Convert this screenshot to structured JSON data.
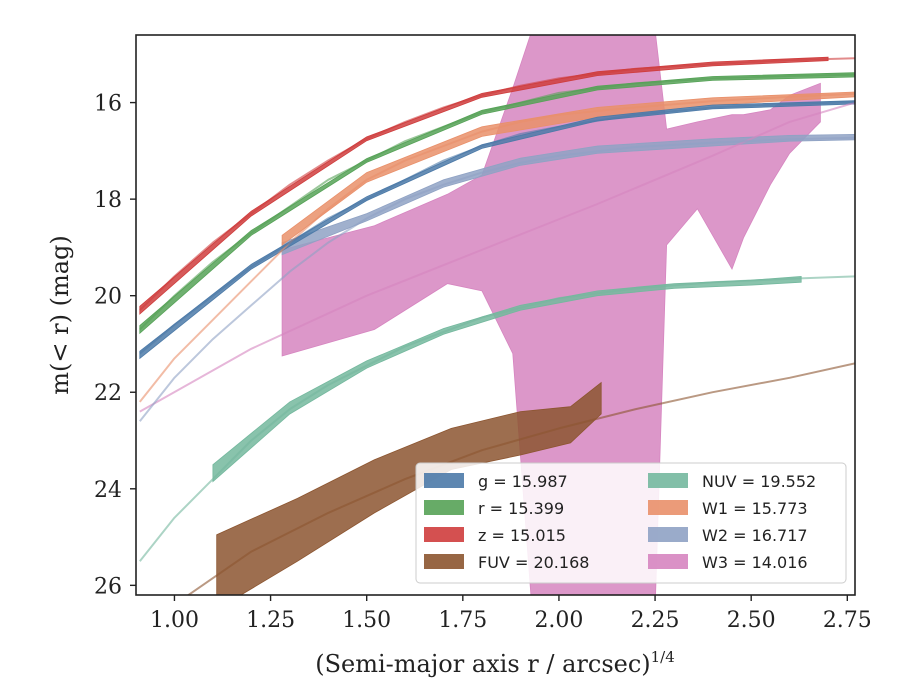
{
  "chart_data": {
    "type": "area",
    "xlabel": "(Semi-major axis r / arcsec)",
    "xlabel_exponent": "1/4",
    "ylabel": "m(< r) (mag)",
    "xlim": [
      0.9,
      2.77
    ],
    "ylim": [
      26.2,
      14.6
    ],
    "y_inverted": true,
    "grid": false,
    "legend_placement": "lower-right",
    "xticks": [
      {
        "value": 1.0,
        "label": "1.00"
      },
      {
        "value": 1.25,
        "label": "1.25"
      },
      {
        "value": 1.5,
        "label": "1.50"
      },
      {
        "value": 1.75,
        "label": "1.75"
      },
      {
        "value": 2.0,
        "label": "2.00"
      },
      {
        "value": 2.25,
        "label": "2.25"
      },
      {
        "value": 2.5,
        "label": "2.50"
      },
      {
        "value": 2.75,
        "label": "2.75"
      }
    ],
    "yticks": [
      {
        "value": 16,
        "label": "16"
      },
      {
        "value": 18,
        "label": "18"
      },
      {
        "value": 20,
        "label": "20"
      },
      {
        "value": 22,
        "label": "22"
      },
      {
        "value": 24,
        "label": "24"
      },
      {
        "value": 26,
        "label": "26"
      }
    ],
    "series": [
      {
        "legend": "g = 15.987",
        "color": "#4c7aa8",
        "model": [
          [
            0.91,
            21.2
          ],
          [
            1.0,
            20.6
          ],
          [
            1.1,
            20.0
          ],
          [
            1.2,
            19.4
          ],
          [
            1.3,
            18.9
          ],
          [
            1.4,
            18.4
          ],
          [
            1.5,
            18.0
          ],
          [
            1.6,
            17.6
          ],
          [
            1.7,
            17.2
          ],
          [
            1.8,
            16.9
          ],
          [
            1.9,
            16.65
          ],
          [
            2.0,
            16.5
          ],
          [
            2.2,
            16.25
          ],
          [
            2.4,
            16.1
          ],
          [
            2.6,
            16.03
          ],
          [
            2.77,
            15.99
          ]
        ],
        "band": [
          [
            0.91,
            21.3,
            21.15
          ],
          [
            1.2,
            19.45,
            19.35
          ],
          [
            1.5,
            18.03,
            17.95
          ],
          [
            1.8,
            16.95,
            16.87
          ],
          [
            2.1,
            16.38,
            16.3
          ],
          [
            2.4,
            16.13,
            16.05
          ],
          [
            2.77,
            16.03,
            15.96
          ]
        ]
      },
      {
        "legend": "r = 15.399",
        "color": "#56a257",
        "model": [
          [
            0.91,
            20.7
          ],
          [
            1.0,
            20.0
          ],
          [
            1.1,
            19.3
          ],
          [
            1.2,
            18.7
          ],
          [
            1.3,
            18.15
          ],
          [
            1.4,
            17.6
          ],
          [
            1.5,
            17.2
          ],
          [
            1.6,
            16.8
          ],
          [
            1.7,
            16.5
          ],
          [
            1.8,
            16.2
          ],
          [
            1.9,
            16.0
          ],
          [
            2.0,
            15.8
          ],
          [
            2.2,
            15.6
          ],
          [
            2.4,
            15.5
          ],
          [
            2.6,
            15.45
          ],
          [
            2.77,
            15.42
          ]
        ],
        "band": [
          [
            0.91,
            20.78,
            20.62
          ],
          [
            1.2,
            18.75,
            18.65
          ],
          [
            1.5,
            17.24,
            17.16
          ],
          [
            1.8,
            16.24,
            16.16
          ],
          [
            2.1,
            15.74,
            15.66
          ],
          [
            2.4,
            15.54,
            15.46
          ],
          [
            2.77,
            15.47,
            15.38
          ]
        ]
      },
      {
        "legend": "z = 15.015",
        "color": "#cf3d3d",
        "model": [
          [
            0.91,
            20.3
          ],
          [
            1.0,
            19.6
          ],
          [
            1.1,
            18.9
          ],
          [
            1.2,
            18.3
          ],
          [
            1.3,
            17.7
          ],
          [
            1.4,
            17.2
          ],
          [
            1.5,
            16.75
          ],
          [
            1.6,
            16.4
          ],
          [
            1.7,
            16.1
          ],
          [
            1.8,
            15.85
          ],
          [
            1.9,
            15.65
          ],
          [
            2.0,
            15.5
          ],
          [
            2.2,
            15.3
          ],
          [
            2.4,
            15.2
          ],
          [
            2.6,
            15.12
          ],
          [
            2.77,
            15.08
          ]
        ],
        "band": [
          [
            0.91,
            20.38,
            20.22
          ],
          [
            1.2,
            18.35,
            18.25
          ],
          [
            1.5,
            16.79,
            16.71
          ],
          [
            1.8,
            15.89,
            15.81
          ],
          [
            2.1,
            15.44,
            15.36
          ],
          [
            2.4,
            15.24,
            15.16
          ],
          [
            2.7,
            15.13,
            15.06
          ]
        ]
      },
      {
        "legend": "FUV = 20.168",
        "color": "#8c5530",
        "model": [
          [
            1.0,
            26.4
          ],
          [
            1.2,
            25.3
          ],
          [
            1.4,
            24.5
          ],
          [
            1.6,
            23.8
          ],
          [
            1.8,
            23.2
          ],
          [
            2.0,
            22.75
          ],
          [
            2.2,
            22.35
          ],
          [
            2.4,
            22.0
          ],
          [
            2.6,
            21.7
          ],
          [
            2.77,
            21.4
          ]
        ],
        "band": [
          [
            1.11,
            26.5,
            24.95
          ],
          [
            1.32,
            25.5,
            24.2
          ],
          [
            1.52,
            24.5,
            23.4
          ],
          [
            1.72,
            23.6,
            22.75
          ],
          [
            1.9,
            23.3,
            22.4
          ],
          [
            2.03,
            23.05,
            22.3
          ],
          [
            2.11,
            22.45,
            21.8
          ]
        ]
      },
      {
        "legend": "NUV = 19.552",
        "color": "#74b89e",
        "model": [
          [
            0.91,
            25.5
          ],
          [
            1.0,
            24.6
          ],
          [
            1.1,
            23.8
          ],
          [
            1.2,
            23.0
          ],
          [
            1.3,
            22.35
          ],
          [
            1.4,
            21.85
          ],
          [
            1.5,
            21.45
          ],
          [
            1.6,
            21.05
          ],
          [
            1.7,
            20.75
          ],
          [
            1.8,
            20.45
          ],
          [
            1.9,
            20.25
          ],
          [
            2.0,
            20.05
          ],
          [
            2.2,
            19.85
          ],
          [
            2.4,
            19.72
          ],
          [
            2.6,
            19.65
          ],
          [
            2.77,
            19.6
          ]
        ],
        "band": [
          [
            1.1,
            23.85,
            23.5
          ],
          [
            1.3,
            22.45,
            22.2
          ],
          [
            1.5,
            21.5,
            21.35
          ],
          [
            1.7,
            20.8,
            20.68
          ],
          [
            1.9,
            20.3,
            20.2
          ],
          [
            2.1,
            20.0,
            19.9
          ],
          [
            2.3,
            19.85,
            19.75
          ],
          [
            2.5,
            19.78,
            19.68
          ],
          [
            2.63,
            19.72,
            19.6
          ]
        ]
      },
      {
        "legend": "W1 = 15.773",
        "color": "#e9906a",
        "model": [
          [
            0.91,
            22.2
          ],
          [
            1.0,
            21.3
          ],
          [
            1.1,
            20.5
          ],
          [
            1.2,
            19.7
          ],
          [
            1.3,
            18.9
          ],
          [
            1.4,
            18.2
          ],
          [
            1.5,
            17.6
          ],
          [
            1.6,
            17.2
          ],
          [
            1.7,
            16.9
          ],
          [
            1.8,
            16.6
          ],
          [
            1.9,
            16.4
          ],
          [
            2.0,
            16.25
          ],
          [
            2.2,
            16.1
          ],
          [
            2.4,
            15.97
          ],
          [
            2.6,
            15.88
          ],
          [
            2.77,
            15.82
          ]
        ],
        "band": [
          [
            1.28,
            18.95,
            18.75
          ],
          [
            1.5,
            17.65,
            17.45
          ],
          [
            1.8,
            16.7,
            16.5
          ],
          [
            2.1,
            16.3,
            16.1
          ],
          [
            2.4,
            16.05,
            15.9
          ],
          [
            2.77,
            15.88,
            15.78
          ]
        ]
      },
      {
        "legend": "W2 = 16.717",
        "color": "#8fa2c4",
        "model": [
          [
            0.91,
            22.6
          ],
          [
            1.0,
            21.7
          ],
          [
            1.1,
            20.9
          ],
          [
            1.2,
            20.2
          ],
          [
            1.3,
            19.5
          ],
          [
            1.4,
            18.9
          ],
          [
            1.5,
            18.4
          ],
          [
            1.6,
            18.0
          ],
          [
            1.7,
            17.7
          ],
          [
            1.8,
            17.45
          ],
          [
            1.9,
            17.25
          ],
          [
            2.0,
            17.1
          ],
          [
            2.2,
            16.92
          ],
          [
            2.4,
            16.83
          ],
          [
            2.6,
            16.76
          ],
          [
            2.77,
            16.73
          ]
        ],
        "band": [
          [
            1.28,
            19.15,
            18.9
          ],
          [
            1.5,
            18.45,
            18.3
          ],
          [
            1.7,
            17.75,
            17.6
          ],
          [
            1.9,
            17.3,
            17.15
          ],
          [
            2.1,
            17.05,
            16.9
          ],
          [
            2.4,
            16.9,
            16.75
          ],
          [
            2.6,
            16.8,
            16.68
          ],
          [
            2.77,
            16.77,
            16.66
          ]
        ]
      },
      {
        "legend": "W3 = 14.016",
        "color": "#d685c0",
        "model": [
          [
            0.91,
            22.4
          ],
          [
            1.2,
            21.1
          ],
          [
            1.5,
            20.0
          ],
          [
            1.8,
            19.05
          ],
          [
            2.1,
            18.1
          ],
          [
            2.4,
            17.1
          ],
          [
            2.6,
            16.4
          ],
          [
            2.77,
            16.0
          ]
        ],
        "band": [
          [
            1.28,
            21.25,
            19.05
          ],
          [
            1.52,
            20.7,
            18.55
          ],
          [
            1.71,
            19.75,
            17.9
          ],
          [
            1.8,
            19.9,
            17.5
          ],
          [
            1.88,
            21.2,
            15.7
          ],
          [
            1.93,
            26.5,
            14.5
          ],
          [
            2.25,
            26.5,
            14.5
          ],
          [
            2.28,
            18.95,
            16.55
          ],
          [
            2.36,
            18.2,
            16.4
          ],
          [
            2.45,
            19.45,
            16.25
          ],
          [
            2.48,
            18.8,
            16.25
          ],
          [
            2.55,
            17.7,
            16.15
          ],
          [
            2.6,
            17.05,
            15.85
          ],
          [
            2.68,
            16.4,
            15.6
          ]
        ]
      }
    ]
  }
}
